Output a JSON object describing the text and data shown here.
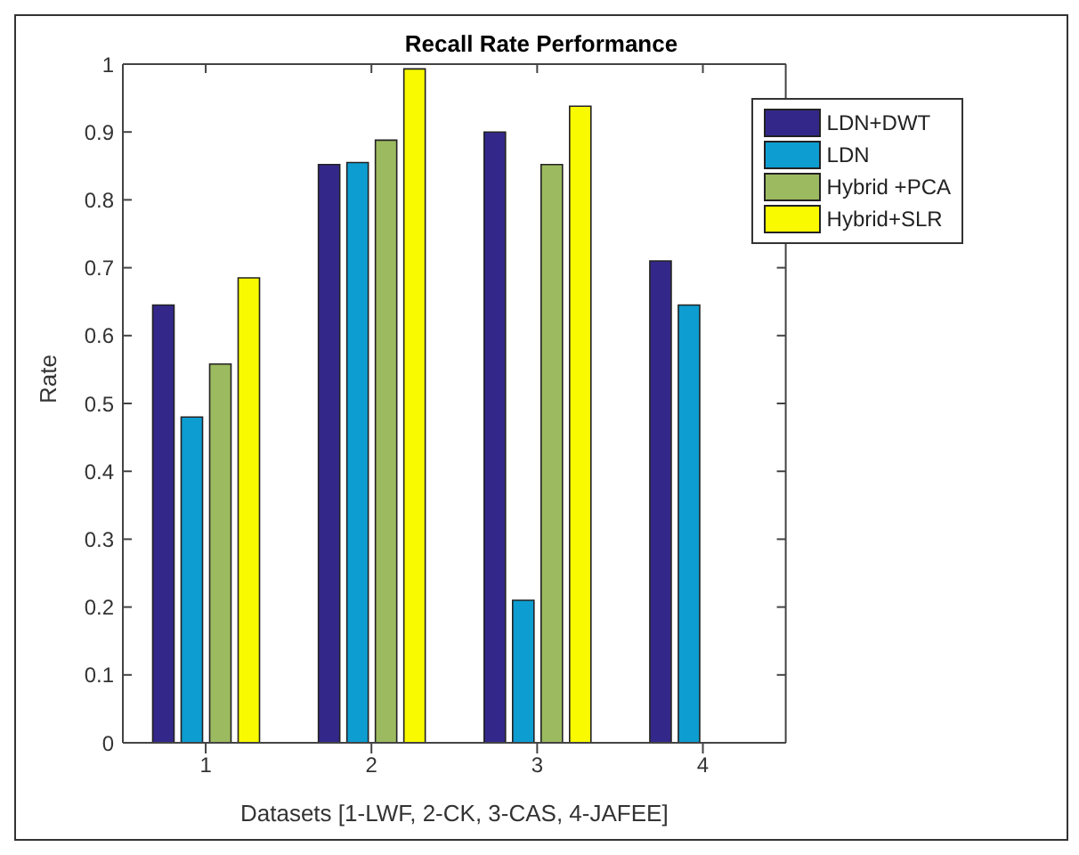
{
  "chart_data": {
    "type": "bar",
    "title": "Recall Rate Performance",
    "xlabel": "Datasets [1-LWF, 2-CK, 3-CAS, 4-JAFEE]",
    "ylabel": "Rate",
    "categories": [
      "1",
      "2",
      "3",
      "4"
    ],
    "series": [
      {
        "name": "LDN+DWT",
        "color": "#33288a",
        "values": [
          0.645,
          0.852,
          0.9,
          0.71
        ]
      },
      {
        "name": "LDN",
        "color": "#0d9dd1",
        "values": [
          0.48,
          0.855,
          0.21,
          0.645
        ]
      },
      {
        "name": "Hybrid +PCA",
        "color": "#9cba5f",
        "values": [
          0.558,
          0.888,
          0.852,
          null
        ]
      },
      {
        "name": "Hybrid+SLR",
        "color": "#f9f900",
        "values": [
          0.685,
          0.993,
          0.938,
          null
        ]
      }
    ],
    "ylim": [
      0,
      1
    ],
    "yticks": [
      0,
      0.1,
      0.2,
      0.3,
      0.4,
      0.5,
      0.6,
      0.7,
      0.8,
      0.9,
      1
    ],
    "grid": false,
    "legend": "top right"
  }
}
